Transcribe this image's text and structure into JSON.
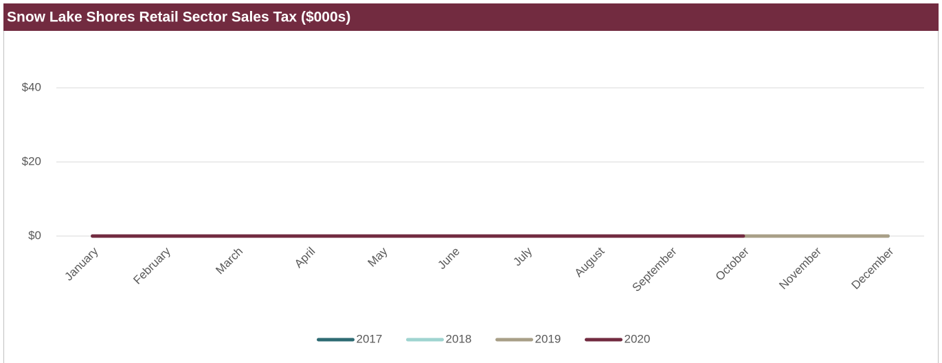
{
  "chart_data": {
    "type": "line",
    "title": "Snow Lake Shores Retail Sector Sales Tax ($000s)",
    "categories": [
      "January",
      "February",
      "March",
      "April",
      "May",
      "June",
      "July",
      "August",
      "September",
      "October",
      "November",
      "December"
    ],
    "series": [
      {
        "name": "2017",
        "color": "#2e6b73",
        "values": [
          0,
          0,
          0,
          0,
          0,
          0,
          0,
          0,
          0,
          0,
          0,
          0
        ]
      },
      {
        "name": "2018",
        "color": "#9fd4d0",
        "values": [
          0,
          0,
          0,
          0,
          0,
          0,
          0,
          0,
          0,
          0,
          0,
          0
        ]
      },
      {
        "name": "2019",
        "color": "#a89f87",
        "values": [
          0,
          0,
          0,
          0,
          0,
          0,
          0,
          0,
          0,
          0,
          0,
          0
        ]
      },
      {
        "name": "2020",
        "color": "#722b40",
        "values": [
          0,
          0,
          0,
          0,
          0,
          0,
          0,
          0,
          0,
          0,
          null,
          null
        ]
      }
    ],
    "ylim": [
      0,
      50
    ],
    "yticks": [
      {
        "value": 0,
        "label": "$0"
      },
      {
        "value": 20,
        "label": "$20"
      },
      {
        "value": 40,
        "label": "$40"
      }
    ],
    "grid": true,
    "legend": "bottom"
  }
}
